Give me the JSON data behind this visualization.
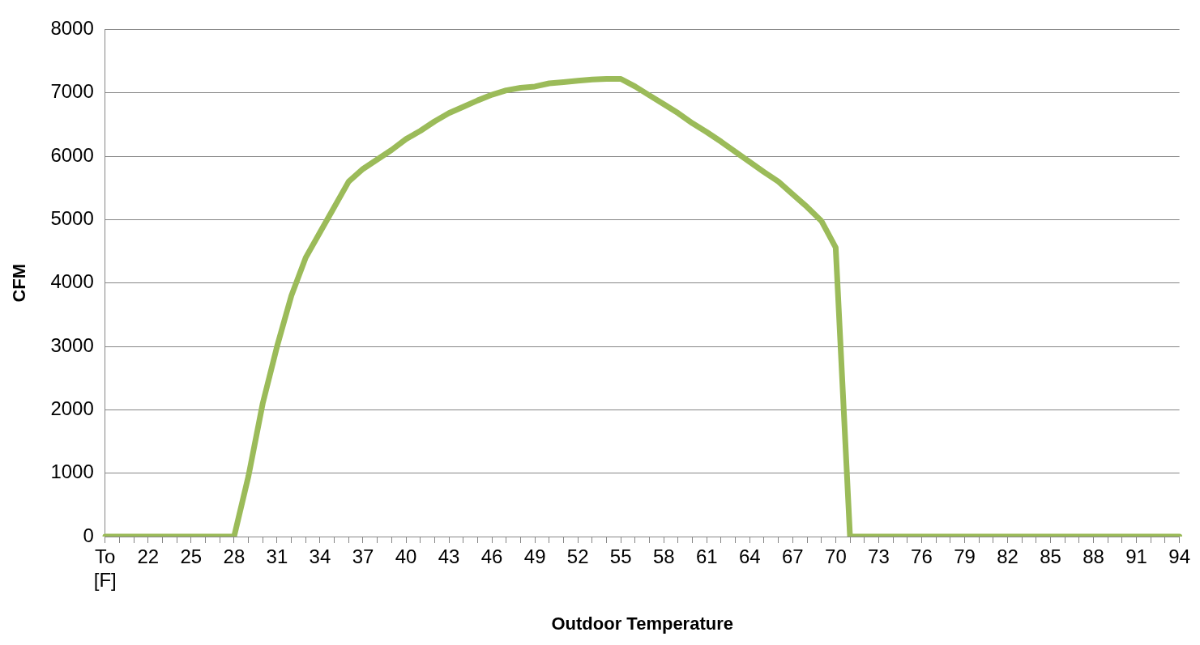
{
  "chart_data": {
    "type": "line",
    "xlabel": "Outdoor Temperature",
    "ylabel": "CFM",
    "categories": [
      "To [F]",
      null,
      null,
      "22",
      null,
      null,
      "25",
      null,
      null,
      "28",
      null,
      null,
      "31",
      null,
      null,
      "34",
      null,
      null,
      "37",
      null,
      null,
      "40",
      null,
      null,
      "43",
      null,
      null,
      "46",
      null,
      null,
      "49",
      null,
      null,
      "52",
      null,
      null,
      "55",
      null,
      null,
      "58",
      null,
      null,
      "61",
      null,
      null,
      "64",
      null,
      null,
      "67",
      null,
      null,
      "70",
      null,
      null,
      "73",
      null,
      null,
      "76",
      null,
      null,
      "79",
      null,
      null,
      "82",
      null,
      null,
      "85",
      null,
      null,
      "88",
      null,
      null,
      "91",
      null,
      null,
      "94"
    ],
    "values": [
      0,
      0,
      0,
      0,
      0,
      0,
      0,
      0,
      0,
      0,
      950,
      2100,
      3000,
      3800,
      4400,
      4800,
      5200,
      5600,
      5800,
      5950,
      6100,
      6270,
      6400,
      6550,
      6680,
      6780,
      6880,
      6970,
      7040,
      7080,
      7100,
      7150,
      7170,
      7190,
      7210,
      7220,
      7220,
      7100,
      6960,
      6820,
      6680,
      6520,
      6380,
      6230,
      6070,
      5910,
      5750,
      5600,
      5400,
      5200,
      4980,
      4560,
      0,
      0,
      0,
      0,
      0,
      0,
      0,
      0,
      0,
      0,
      0,
      0,
      0,
      0,
      0,
      0,
      0,
      0,
      0,
      0,
      0,
      0,
      0,
      0
    ],
    "color": "#9bbb59",
    "marker": "none",
    "ylim": [
      0,
      8000
    ],
    "yticks": [
      0,
      1000,
      2000,
      3000,
      4000,
      5000,
      6000,
      7000,
      8000
    ],
    "grid": "y",
    "legend": false
  }
}
